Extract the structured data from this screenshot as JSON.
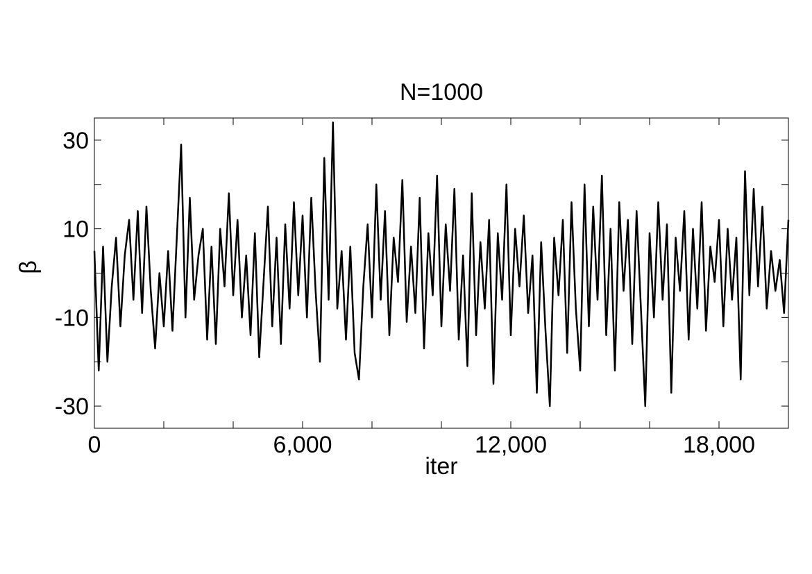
{
  "chart_data": {
    "type": "line",
    "title": "N=1000",
    "xlabel": "iter",
    "ylabel": "β",
    "x": [
      0,
      125,
      250,
      375,
      500,
      625,
      750,
      875,
      1000,
      1125,
      1250,
      1375,
      1500,
      1625,
      1750,
      1875,
      2000,
      2125,
      2250,
      2375,
      2500,
      2625,
      2750,
      2875,
      3000,
      3125,
      3250,
      3375,
      3500,
      3625,
      3750,
      3875,
      4000,
      4125,
      4250,
      4375,
      4500,
      4625,
      4750,
      4875,
      5000,
      5125,
      5250,
      5375,
      5500,
      5625,
      5750,
      5875,
      6000,
      6125,
      6250,
      6375,
      6500,
      6625,
      6750,
      6875,
      7000,
      7125,
      7250,
      7375,
      7500,
      7625,
      7750,
      7875,
      8000,
      8125,
      8250,
      8375,
      8500,
      8625,
      8750,
      8875,
      9000,
      9125,
      9250,
      9375,
      9500,
      9625,
      9750,
      9875,
      10000,
      10125,
      10250,
      10375,
      10500,
      10625,
      10750,
      10875,
      11000,
      11125,
      11250,
      11375,
      11500,
      11625,
      11750,
      11875,
      12000,
      12125,
      12250,
      12375,
      12500,
      12625,
      12750,
      12875,
      13000,
      13125,
      13250,
      13375,
      13500,
      13625,
      13750,
      13875,
      14000,
      14125,
      14250,
      14375,
      14500,
      14625,
      14750,
      14875,
      15000,
      15125,
      15250,
      15375,
      15500,
      15625,
      15750,
      15875,
      16000,
      16125,
      16250,
      16375,
      16500,
      16625,
      16750,
      16875,
      17000,
      17125,
      17250,
      17375,
      17500,
      17625,
      17750,
      17875,
      18000,
      18125,
      18250,
      18375,
      18500,
      18625,
      18750,
      18875,
      19000,
      19125,
      19250,
      19375,
      19500,
      19625,
      19750,
      19875,
      20000
    ],
    "series": [
      {
        "color": "#000000",
        "values": [
          5,
          -22,
          6,
          -20,
          -3,
          8,
          -12,
          4,
          12,
          -6,
          14,
          -9,
          15,
          -4,
          -17,
          0,
          -12,
          5,
          -13,
          8,
          29,
          -10,
          17,
          -6,
          4,
          10,
          -15,
          6,
          -16,
          10,
          -3,
          18,
          -5,
          12,
          -10,
          4,
          -14,
          9,
          -19,
          -2,
          15,
          -12,
          8,
          -16,
          11,
          -8,
          16,
          -5,
          13,
          -10,
          17,
          -4,
          -20,
          26,
          -6,
          34,
          -8,
          5,
          -15,
          6,
          -18,
          -24,
          -3,
          11,
          -10,
          20,
          -6,
          14,
          -14,
          8,
          -2,
          21,
          -11,
          6,
          -9,
          17,
          -17,
          9,
          -5,
          22,
          -12,
          11,
          -4,
          19,
          -15,
          4,
          -21,
          18,
          -14,
          7,
          -8,
          12,
          -25,
          9,
          -6,
          20,
          -14,
          10,
          -3,
          13,
          -9,
          4,
          -27,
          7,
          -13,
          -30,
          8,
          -5,
          12,
          -18,
          16,
          -8,
          -22,
          20,
          -12,
          15,
          -6,
          22,
          -14,
          10,
          -22,
          16,
          -4,
          12,
          -16,
          14,
          -8,
          -30,
          9,
          -10,
          16,
          -6,
          11,
          -27,
          8,
          -4,
          14,
          -15,
          10,
          -8,
          16,
          -13,
          6,
          -2,
          12,
          -12,
          10,
          -6,
          8,
          -24,
          23,
          -5,
          19,
          -3,
          15,
          -8,
          5,
          -4,
          3,
          -9,
          12
        ]
      }
    ],
    "xlim": [
      0,
      20000
    ],
    "xticks": [
      {
        "value": 0,
        "label": "0"
      },
      {
        "value": 6000,
        "label": "6,000"
      },
      {
        "value": 12000,
        "label": "12,000"
      },
      {
        "value": 18000,
        "label": "18,000"
      }
    ],
    "xminorticks": [
      2000,
      4000,
      8000,
      10000,
      14000,
      16000
    ],
    "ylim": [
      -35,
      35
    ],
    "yticks": [
      30,
      10,
      -10,
      -30
    ],
    "yminorticks": [
      20,
      0,
      -20
    ]
  }
}
